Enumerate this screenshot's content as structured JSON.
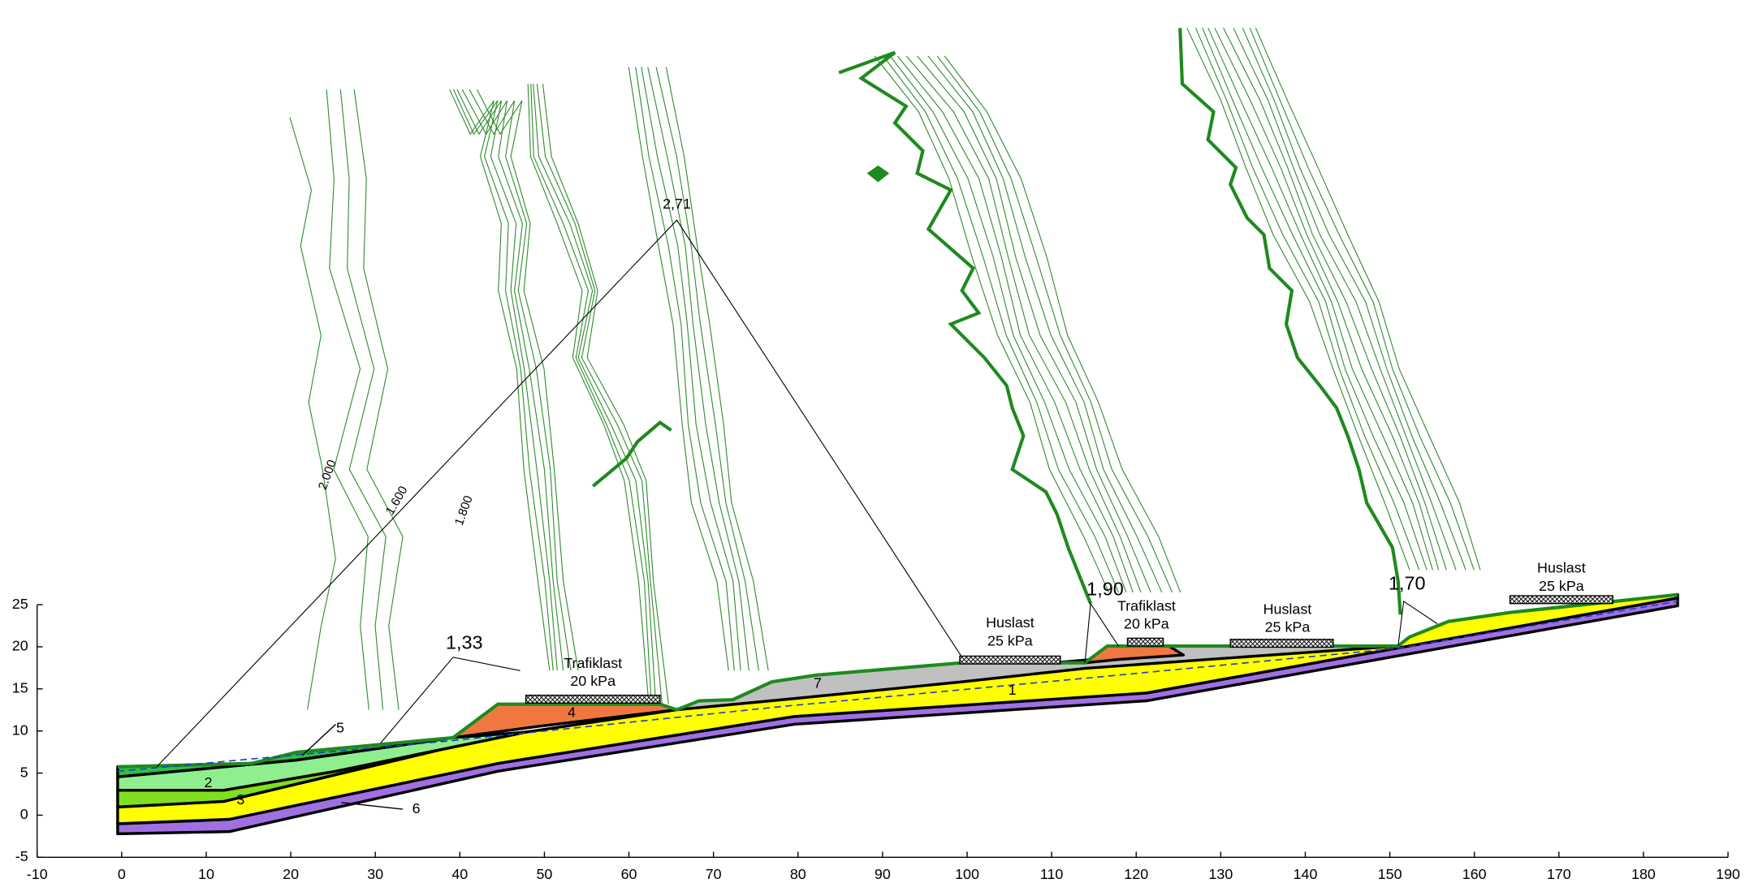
{
  "axes": {
    "xlim": [
      -10,
      190
    ],
    "ylim": [
      -5,
      25
    ],
    "xticks": [
      -10,
      0,
      10,
      20,
      30,
      40,
      50,
      60,
      70,
      80,
      90,
      100,
      110,
      120,
      130,
      140,
      150,
      160,
      170,
      180,
      190
    ],
    "yticks": [
      -5,
      0,
      5,
      10,
      15,
      20,
      25
    ]
  },
  "safety_factors": [
    "2,71",
    "1,33",
    "1,90",
    "1,70"
  ],
  "loads": [
    {
      "name": "Trafiklast",
      "value": "20 kPa"
    },
    {
      "name": "Huslast",
      "value": "25 kPa"
    },
    {
      "name": "Trafiklast",
      "value": "20 kPa"
    },
    {
      "name": "Huslast",
      "value": "25 kPa"
    },
    {
      "name": "Huslast",
      "value": "25 kPa"
    }
  ],
  "layer_labels": [
    "1",
    "2",
    "3",
    "4",
    "5",
    "6",
    "7"
  ],
  "contour_labels": [
    "2.000",
    "1.600",
    "1.800"
  ]
}
